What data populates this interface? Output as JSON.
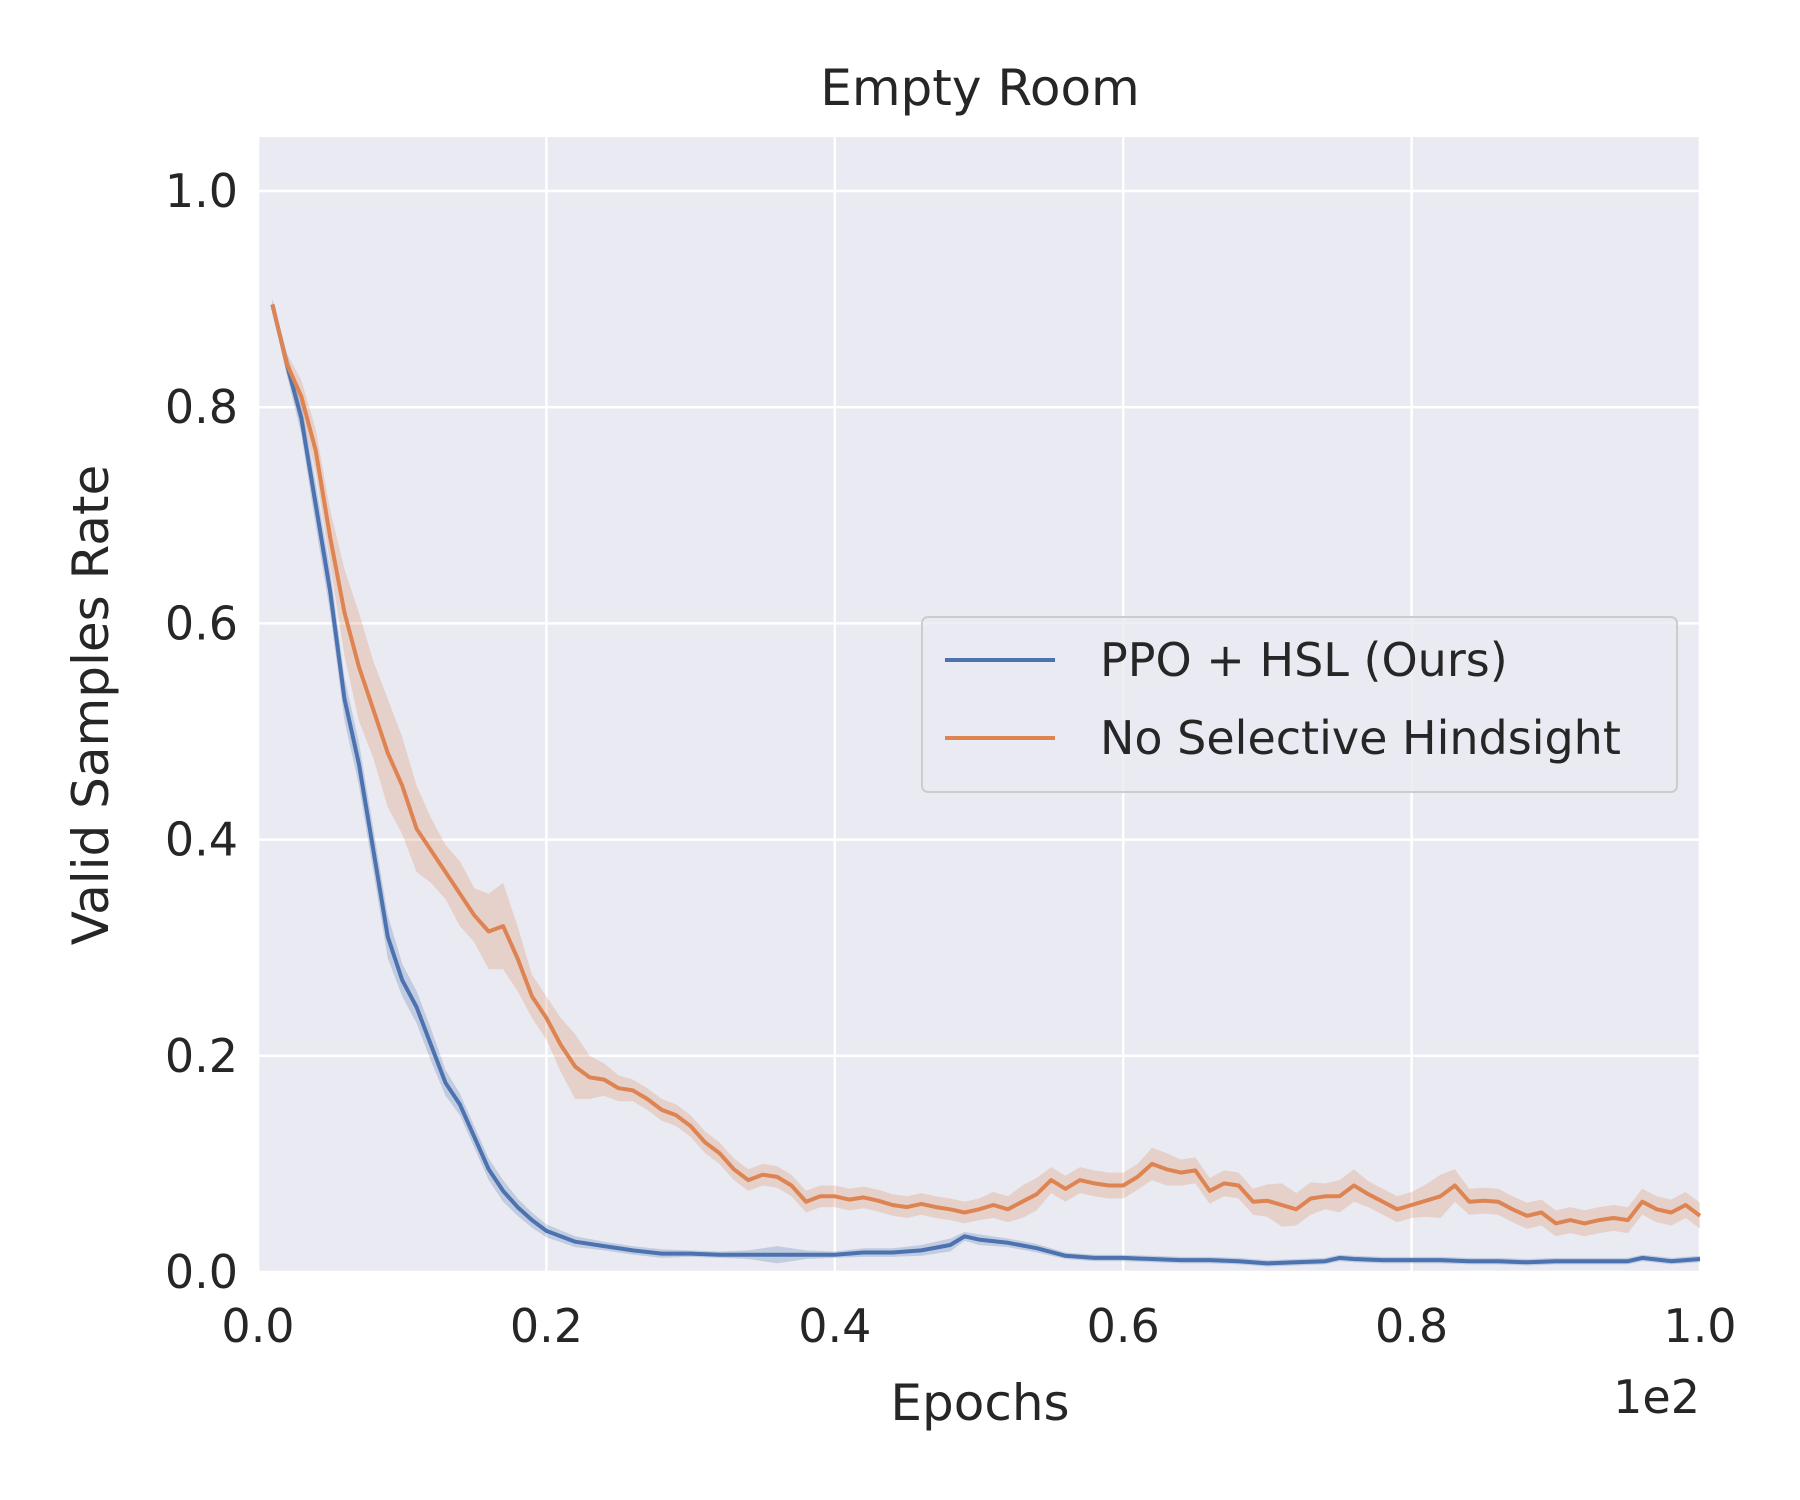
{
  "chart_data": {
    "type": "line",
    "title": "Empty Room",
    "xlabel": "Epochs",
    "ylabel": "Valid Samples Rate",
    "x_offset_label": "1e2",
    "xlim": [
      0.0,
      1.0
    ],
    "ylim": [
      0.0,
      1.05
    ],
    "x_ticks": [
      "0.0",
      "0.2",
      "0.4",
      "0.6",
      "0.8",
      "1.0"
    ],
    "y_ticks": [
      "0.0",
      "0.2",
      "0.4",
      "0.6",
      "0.8",
      "1.0"
    ],
    "grid": true,
    "legend_position": "center-right",
    "background_color": "#eaeaf2",
    "series": [
      {
        "name": "PPO + HSL (Ours)",
        "color": "#4c72b0",
        "x": [
          0.01,
          0.02,
          0.03,
          0.04,
          0.05,
          0.06,
          0.07,
          0.08,
          0.09,
          0.1,
          0.11,
          0.12,
          0.13,
          0.14,
          0.15,
          0.16,
          0.17,
          0.18,
          0.19,
          0.2,
          0.22,
          0.24,
          0.26,
          0.28,
          0.3,
          0.32,
          0.34,
          0.36,
          0.38,
          0.4,
          0.42,
          0.44,
          0.46,
          0.48,
          0.49,
          0.5,
          0.52,
          0.54,
          0.56,
          0.58,
          0.6,
          0.62,
          0.64,
          0.66,
          0.68,
          0.7,
          0.72,
          0.74,
          0.75,
          0.76,
          0.78,
          0.8,
          0.82,
          0.84,
          0.86,
          0.88,
          0.9,
          0.92,
          0.94,
          0.95,
          0.96,
          0.98,
          1.0
        ],
        "y": [
          0.895,
          0.84,
          0.79,
          0.71,
          0.63,
          0.53,
          0.47,
          0.39,
          0.31,
          0.27,
          0.245,
          0.21,
          0.175,
          0.155,
          0.125,
          0.095,
          0.075,
          0.06,
          0.048,
          0.038,
          0.028,
          0.024,
          0.02,
          0.017,
          0.017,
          0.016,
          0.016,
          0.016,
          0.016,
          0.016,
          0.018,
          0.018,
          0.02,
          0.025,
          0.033,
          0.03,
          0.027,
          0.022,
          0.015,
          0.013,
          0.013,
          0.012,
          0.011,
          0.011,
          0.01,
          0.008,
          0.009,
          0.01,
          0.013,
          0.012,
          0.011,
          0.011,
          0.011,
          0.01,
          0.01,
          0.009,
          0.01,
          0.01,
          0.01,
          0.01,
          0.013,
          0.01,
          0.012
        ],
        "band_width": [
          0.005,
          0.01,
          0.015,
          0.02,
          0.02,
          0.02,
          0.02,
          0.02,
          0.02,
          0.015,
          0.015,
          0.015,
          0.012,
          0.01,
          0.01,
          0.01,
          0.01,
          0.008,
          0.007,
          0.006,
          0.005,
          0.004,
          0.004,
          0.004,
          0.003,
          0.003,
          0.004,
          0.008,
          0.004,
          0.003,
          0.004,
          0.004,
          0.005,
          0.006,
          0.004,
          0.005,
          0.004,
          0.004,
          0.003,
          0.003,
          0.003,
          0.003,
          0.003,
          0.003,
          0.003,
          0.003,
          0.003,
          0.003,
          0.003,
          0.003,
          0.003,
          0.003,
          0.003,
          0.003,
          0.003,
          0.003,
          0.003,
          0.003,
          0.003,
          0.003,
          0.003,
          0.003,
          0.003
        ]
      },
      {
        "name": "No Selective Hindsight",
        "color": "#dd8452",
        "x": [
          0.01,
          0.02,
          0.03,
          0.04,
          0.05,
          0.06,
          0.07,
          0.08,
          0.09,
          0.1,
          0.11,
          0.12,
          0.13,
          0.14,
          0.15,
          0.16,
          0.17,
          0.18,
          0.19,
          0.2,
          0.21,
          0.22,
          0.23,
          0.24,
          0.25,
          0.26,
          0.27,
          0.28,
          0.29,
          0.3,
          0.31,
          0.32,
          0.33,
          0.34,
          0.35,
          0.36,
          0.37,
          0.38,
          0.39,
          0.4,
          0.41,
          0.42,
          0.43,
          0.44,
          0.45,
          0.46,
          0.47,
          0.48,
          0.49,
          0.5,
          0.51,
          0.52,
          0.53,
          0.54,
          0.55,
          0.56,
          0.57,
          0.58,
          0.59,
          0.6,
          0.61,
          0.62,
          0.63,
          0.64,
          0.65,
          0.66,
          0.67,
          0.68,
          0.69,
          0.7,
          0.71,
          0.72,
          0.73,
          0.74,
          0.75,
          0.76,
          0.77,
          0.78,
          0.79,
          0.8,
          0.81,
          0.82,
          0.83,
          0.84,
          0.85,
          0.86,
          0.87,
          0.88,
          0.89,
          0.9,
          0.91,
          0.92,
          0.93,
          0.94,
          0.95,
          0.96,
          0.97,
          0.98,
          0.99,
          1.0
        ],
        "y": [
          0.895,
          0.84,
          0.81,
          0.76,
          0.68,
          0.61,
          0.56,
          0.52,
          0.48,
          0.45,
          0.41,
          0.39,
          0.37,
          0.35,
          0.33,
          0.315,
          0.32,
          0.29,
          0.255,
          0.235,
          0.21,
          0.19,
          0.18,
          0.178,
          0.17,
          0.168,
          0.16,
          0.15,
          0.145,
          0.135,
          0.12,
          0.11,
          0.095,
          0.085,
          0.09,
          0.088,
          0.08,
          0.065,
          0.07,
          0.07,
          0.067,
          0.069,
          0.066,
          0.062,
          0.06,
          0.063,
          0.06,
          0.058,
          0.055,
          0.058,
          0.062,
          0.058,
          0.065,
          0.072,
          0.085,
          0.077,
          0.085,
          0.082,
          0.08,
          0.08,
          0.088,
          0.1,
          0.095,
          0.092,
          0.094,
          0.075,
          0.082,
          0.08,
          0.065,
          0.066,
          0.062,
          0.058,
          0.068,
          0.07,
          0.07,
          0.08,
          0.072,
          0.065,
          0.058,
          0.062,
          0.066,
          0.07,
          0.08,
          0.065,
          0.066,
          0.065,
          0.058,
          0.052,
          0.055,
          0.045,
          0.048,
          0.045,
          0.048,
          0.05,
          0.048,
          0.065,
          0.058,
          0.055,
          0.062,
          0.052
        ],
        "band_width": [
          0.005,
          0.01,
          0.015,
          0.02,
          0.025,
          0.04,
          0.05,
          0.045,
          0.05,
          0.045,
          0.04,
          0.03,
          0.025,
          0.03,
          0.025,
          0.035,
          0.04,
          0.03,
          0.02,
          0.02,
          0.025,
          0.03,
          0.02,
          0.015,
          0.012,
          0.01,
          0.01,
          0.01,
          0.01,
          0.01,
          0.01,
          0.01,
          0.01,
          0.01,
          0.01,
          0.01,
          0.01,
          0.01,
          0.01,
          0.01,
          0.01,
          0.01,
          0.01,
          0.01,
          0.01,
          0.01,
          0.01,
          0.01,
          0.01,
          0.01,
          0.012,
          0.012,
          0.015,
          0.015,
          0.012,
          0.012,
          0.012,
          0.012,
          0.012,
          0.012,
          0.012,
          0.015,
          0.015,
          0.012,
          0.012,
          0.012,
          0.012,
          0.012,
          0.012,
          0.015,
          0.02,
          0.015,
          0.015,
          0.012,
          0.015,
          0.015,
          0.012,
          0.012,
          0.012,
          0.012,
          0.015,
          0.02,
          0.015,
          0.012,
          0.012,
          0.012,
          0.012,
          0.012,
          0.012,
          0.012,
          0.012,
          0.012,
          0.012,
          0.012,
          0.012,
          0.012,
          0.012,
          0.012,
          0.012,
          0.012
        ]
      }
    ]
  }
}
